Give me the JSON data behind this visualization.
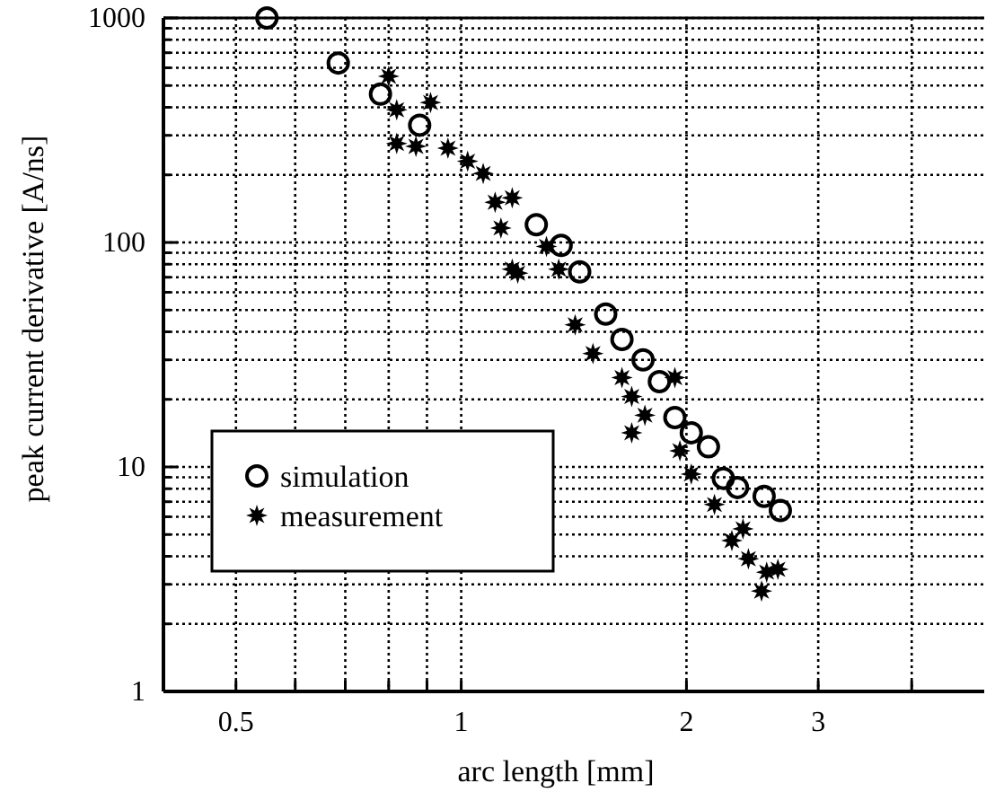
{
  "chart_data": {
    "type": "scatter",
    "xlabel": "arc length [mm]",
    "ylabel": "peak current derivative [A/ns]",
    "log": "xy",
    "grid": true,
    "legend": "bottom left",
    "xlim": [
      0.4,
      5
    ],
    "ylim": [
      1,
      1000
    ],
    "xticks": [
      {
        "value": 0.4,
        "label": null
      },
      0.5,
      {
        "value": 0.6,
        "label": null
      },
      {
        "value": 0.7,
        "label": null
      },
      {
        "value": 0.8,
        "label": null
      },
      {
        "value": 0.9,
        "label": null
      },
      1,
      2,
      3,
      {
        "value": 4,
        "label": null
      }
    ],
    "yticks": [
      1,
      {
        "value": 2,
        "label": null
      },
      {
        "value": 3,
        "label": null
      },
      {
        "value": 4,
        "label": null
      },
      {
        "value": 5,
        "label": null
      },
      {
        "value": 6,
        "label": null
      },
      {
        "value": 7,
        "label": null
      },
      {
        "value": 8,
        "label": null
      },
      {
        "value": 9,
        "label": null
      },
      10,
      {
        "value": 20,
        "label": null
      },
      {
        "value": 30,
        "label": null
      },
      {
        "value": 40,
        "label": null
      },
      {
        "value": 50,
        "label": null
      },
      {
        "value": 60,
        "label": null
      },
      {
        "value": 70,
        "label": null
      },
      {
        "value": 80,
        "label": null
      },
      {
        "value": 90,
        "label": null
      },
      100,
      {
        "value": 200,
        "label": null
      },
      {
        "value": 300,
        "label": null
      },
      {
        "value": 400,
        "label": null
      },
      {
        "value": 500,
        "label": null
      },
      {
        "value": 600,
        "label": null
      },
      {
        "value": 700,
        "label": null
      },
      {
        "value": 800,
        "label": null
      },
      {
        "value": 900,
        "label": null
      },
      1000
    ],
    "series": [
      {
        "name": "simulation",
        "color": "#000000",
        "marker": "circle",
        "x": [
          0.55,
          0.685,
          0.78,
          0.88,
          1.26,
          1.36,
          1.44,
          1.56,
          1.64,
          1.75,
          1.84,
          1.93,
          2.03,
          2.14,
          2.24,
          2.34,
          2.54,
          2.67
        ],
        "values": [
          1000,
          630,
          458,
          333,
          120,
          97,
          74,
          48,
          37,
          30,
          24,
          16.6,
          14.2,
          12.3,
          8.9,
          8.1,
          7.4,
          6.4
        ]
      },
      {
        "name": "measurement",
        "color": "#000000",
        "marker": "star",
        "x": [
          0.8,
          0.82,
          0.91,
          0.82,
          0.87,
          0.96,
          1.02,
          1.07,
          1.11,
          1.17,
          1.13,
          1.3,
          1.19,
          1.35,
          1.17,
          1.42,
          1.5,
          1.64,
          1.93,
          1.69,
          1.76,
          1.69,
          1.96,
          2.03,
          2.18,
          2.3,
          2.42,
          2.56,
          2.52,
          2.65,
          2.38
        ],
        "values": [
          550,
          390,
          420,
          276,
          268,
          263,
          230,
          203,
          151,
          158,
          116,
          96,
          73,
          76,
          76,
          43,
          32,
          25,
          25,
          20.6,
          17,
          14.2,
          11.8,
          9.3,
          6.8,
          4.7,
          3.9,
          3.4,
          2.8,
          3.5,
          5.3
        ]
      }
    ]
  }
}
